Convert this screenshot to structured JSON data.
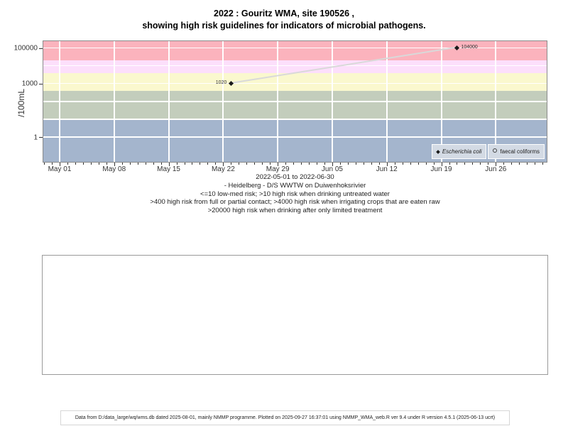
{
  "title": {
    "line1": "2022 : Gouritz WMA, site 190526 ,",
    "line2": "showing high risk guidelines for indicators of microbial pathogens."
  },
  "subtitle": {
    "date_range": "2022-05-01 to 2022-06-30",
    "site": "- Heidelberg - D/S WWTW on Duiwenhoksrivier",
    "risk_line1": "<=10 low-med risk; >10 high risk when drinking untreated water",
    "risk_line2": ">400 high risk from full or partial contact; >4000 high risk when irrigating crops that are eaten raw",
    "risk_line3": ">20000 high risk when drinking after only limited treatment"
  },
  "footer": "Data from D:/data_large/wq/wms.db dated 2025-08-01, mainly NMMP programme. Plotted on 2025-09-27 16:37:01 using NMMP_WMA_web.R ver 9.4 under R version 4.5.1 (2025-06-13 ucrt)",
  "chart_data": {
    "type": "scatter",
    "title": "2022 : Gouritz WMA, site 190526 , showing high risk guidelines for indicators of microbial pathogens.",
    "ylabel": "/100mL",
    "y_scale": "log10",
    "x_range": [
      "2022-05-01",
      "2022-06-30"
    ],
    "x_tick_labels": [
      "May 01",
      "May 08",
      "May 15",
      "May 22",
      "May 29",
      "Jun 05",
      "Jun 12",
      "Jun 19",
      "Jun 26"
    ],
    "x_tick_day_offsets": [
      0,
      7,
      14,
      21,
      28,
      35,
      42,
      49,
      56
    ],
    "y_tick_values": [
      1,
      1000,
      100000
    ],
    "y_tick_labels": [
      "1",
      "1000",
      "100000"
    ],
    "y_gridline_values": [
      1,
      10,
      100,
      1000,
      10000,
      100000
    ],
    "grid_color": "#ffffff",
    "risk_bands": [
      {
        "name": "low-med risk",
        "range": "<=10",
        "upper": 10,
        "color": "#a4b5cd"
      },
      {
        "name": "high risk when drinking untreated water",
        "range": "10-400",
        "upper": 400,
        "color": "#c3cdbc"
      },
      {
        "name": "high risk from full or partial contact",
        "range": "400-4000",
        "upper": 4000,
        "color": "#faf8ce"
      },
      {
        "name": "high risk when irrigating crops that are eaten raw",
        "range": "4000-20000",
        "upper": 20000,
        "color": "#fcdffb"
      },
      {
        "name": "high risk when drinking after only limited treatment",
        "range": ">20000",
        "upper": null,
        "color": "#fbb3bd"
      }
    ],
    "series": [
      {
        "name": "Escherichia coli",
        "marker": "filled-diamond",
        "marker_color": "#1a1a1a",
        "line_color": "#d9d9d9",
        "points": [
          {
            "date": "2022-05-23",
            "day_offset": 22,
            "value": 1020,
            "label": "1020",
            "label_side": "left"
          },
          {
            "date": "2022-06-21",
            "day_offset": 51,
            "value": 104000,
            "label": "104000",
            "label_side": "right"
          }
        ]
      },
      {
        "name": "faecal coliforms",
        "marker": "open-circle",
        "marker_color": "#444444",
        "points": []
      }
    ],
    "legend": {
      "position": "bottom-right",
      "items": [
        {
          "label": "Escherichia coli",
          "marker": "filled-diamond",
          "italic": true
        },
        {
          "label": "faecal coliforms",
          "marker": "open-circle",
          "italic": false
        }
      ]
    }
  }
}
